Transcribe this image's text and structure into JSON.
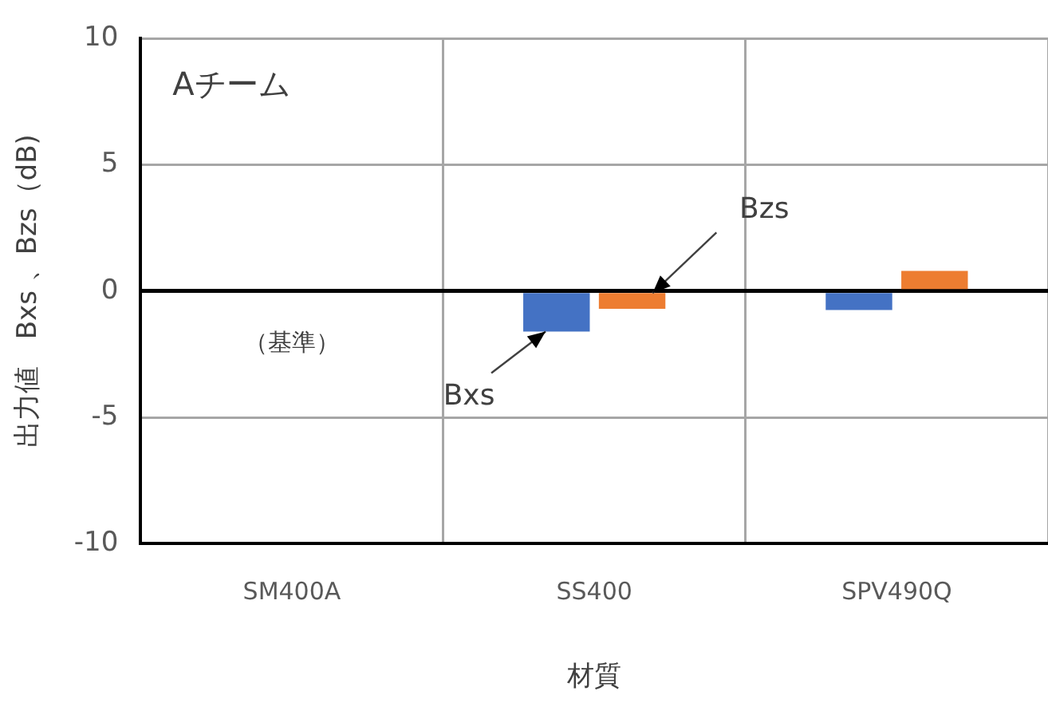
{
  "chart_data": {
    "type": "bar",
    "ylabel": "出力値　Bxs 、Bzs（dB)",
    "xlabel": "材質",
    "categories": [
      "SM400A",
      "SS400",
      "SPV490Q"
    ],
    "series": [
      {
        "name": "Bxs",
        "color": "#4472c4",
        "values": [
          0,
          -1.6,
          -0.75
        ]
      },
      {
        "name": "Bzs",
        "color": "#ed7d31",
        "values": [
          0,
          -0.7,
          0.8
        ]
      }
    ],
    "ylim": [
      -10,
      10
    ],
    "yticks": [
      -10,
      -5,
      0,
      5,
      10
    ],
    "grid": true,
    "legend": false,
    "annotations": [
      "Aチーム",
      {
        "text": "（基準）",
        "x": "SM400A",
        "y": 0
      }
    ]
  }
}
